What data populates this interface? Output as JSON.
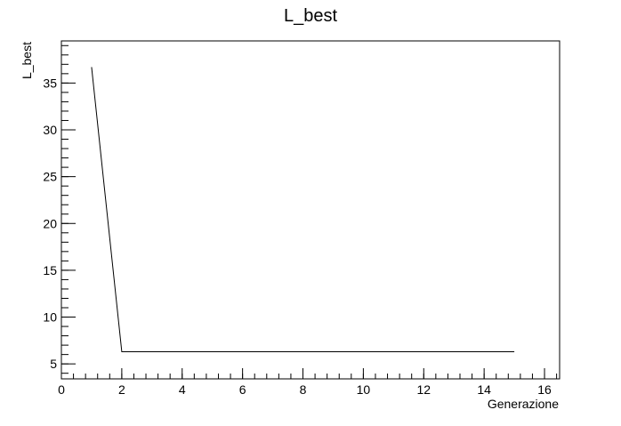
{
  "chart_data": {
    "type": "line",
    "title": "L_best",
    "xlabel": "Generazione",
    "ylabel": "L_best",
    "xlim": [
      0,
      16.5
    ],
    "ylim": [
      3.4,
      39.5
    ],
    "x_ticks": [
      0,
      2,
      4,
      6,
      8,
      10,
      12,
      14,
      16
    ],
    "y_ticks": [
      5,
      10,
      15,
      20,
      25,
      30,
      35
    ],
    "x_minor_step": 0.4,
    "y_minor_step": 1,
    "grid": false,
    "legend": "none",
    "colors": {
      "line": "#000000",
      "frame": "#000000",
      "background": "#ffffff"
    },
    "series": [
      {
        "x": [
          1,
          2,
          3,
          4,
          5,
          6,
          7,
          8,
          9,
          10,
          11,
          12,
          13,
          14,
          15
        ],
        "y": [
          36.7,
          6.3,
          6.3,
          6.3,
          6.3,
          6.3,
          6.3,
          6.3,
          6.3,
          6.3,
          6.3,
          6.3,
          6.3,
          6.3,
          6.3
        ]
      }
    ]
  }
}
